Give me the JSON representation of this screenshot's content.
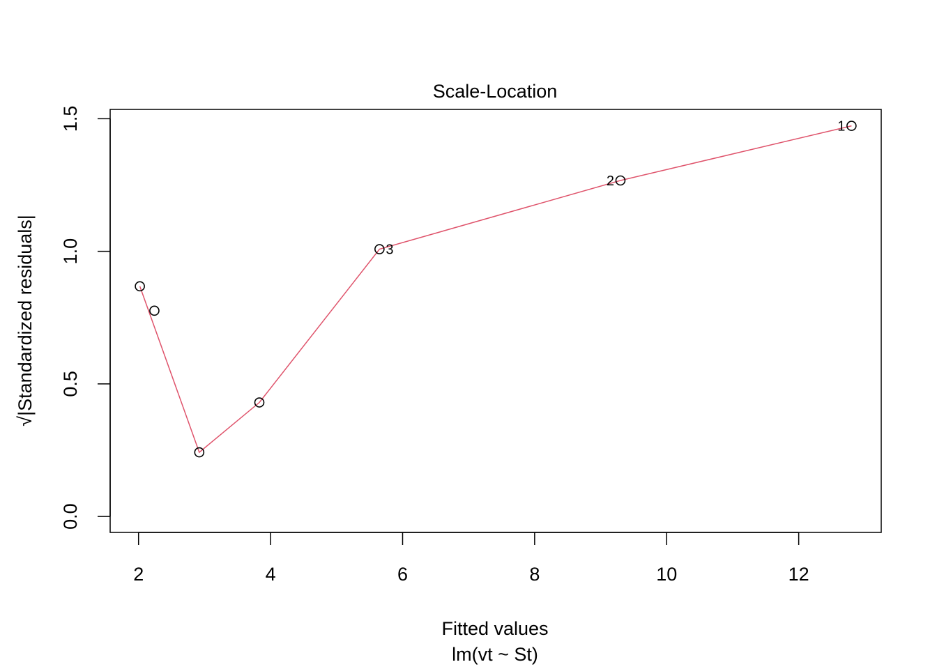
{
  "chart_data": {
    "type": "scatter",
    "title": "Scale-Location",
    "xlabel": "Fitted values",
    "sublabel": "lm(vt ~ St)",
    "ylabel": "√|Standardized residuals|",
    "xlim": [
      1.57,
      13.25
    ],
    "ylim": [
      -0.06,
      1.535
    ],
    "xticks": [
      2,
      4,
      6,
      8,
      10,
      12
    ],
    "yticks": [
      0.0,
      0.5,
      1.0,
      1.5
    ],
    "xtick_labels": [
      "2",
      "4",
      "6",
      "8",
      "10",
      "12"
    ],
    "ytick_labels": [
      "0.0",
      "0.5",
      "1.0",
      "1.5"
    ],
    "grid": false,
    "points": [
      {
        "x": 12.8,
        "y": 1.473,
        "label": "1"
      },
      {
        "x": 9.3,
        "y": 1.267,
        "label": "2"
      },
      {
        "x": 5.65,
        "y": 1.008,
        "label": "3"
      },
      {
        "x": 2.02,
        "y": 0.868,
        "label": ""
      },
      {
        "x": 2.24,
        "y": 0.776,
        "label": ""
      },
      {
        "x": 3.83,
        "y": 0.43,
        "label": ""
      },
      {
        "x": 2.92,
        "y": 0.242,
        "label": ""
      }
    ],
    "smooth_line": {
      "color": "#DF536B",
      "x": [
        2.02,
        2.92,
        3.83,
        5.65,
        9.3,
        12.8
      ],
      "y": [
        0.868,
        0.242,
        0.43,
        1.008,
        1.267,
        1.473
      ]
    }
  }
}
